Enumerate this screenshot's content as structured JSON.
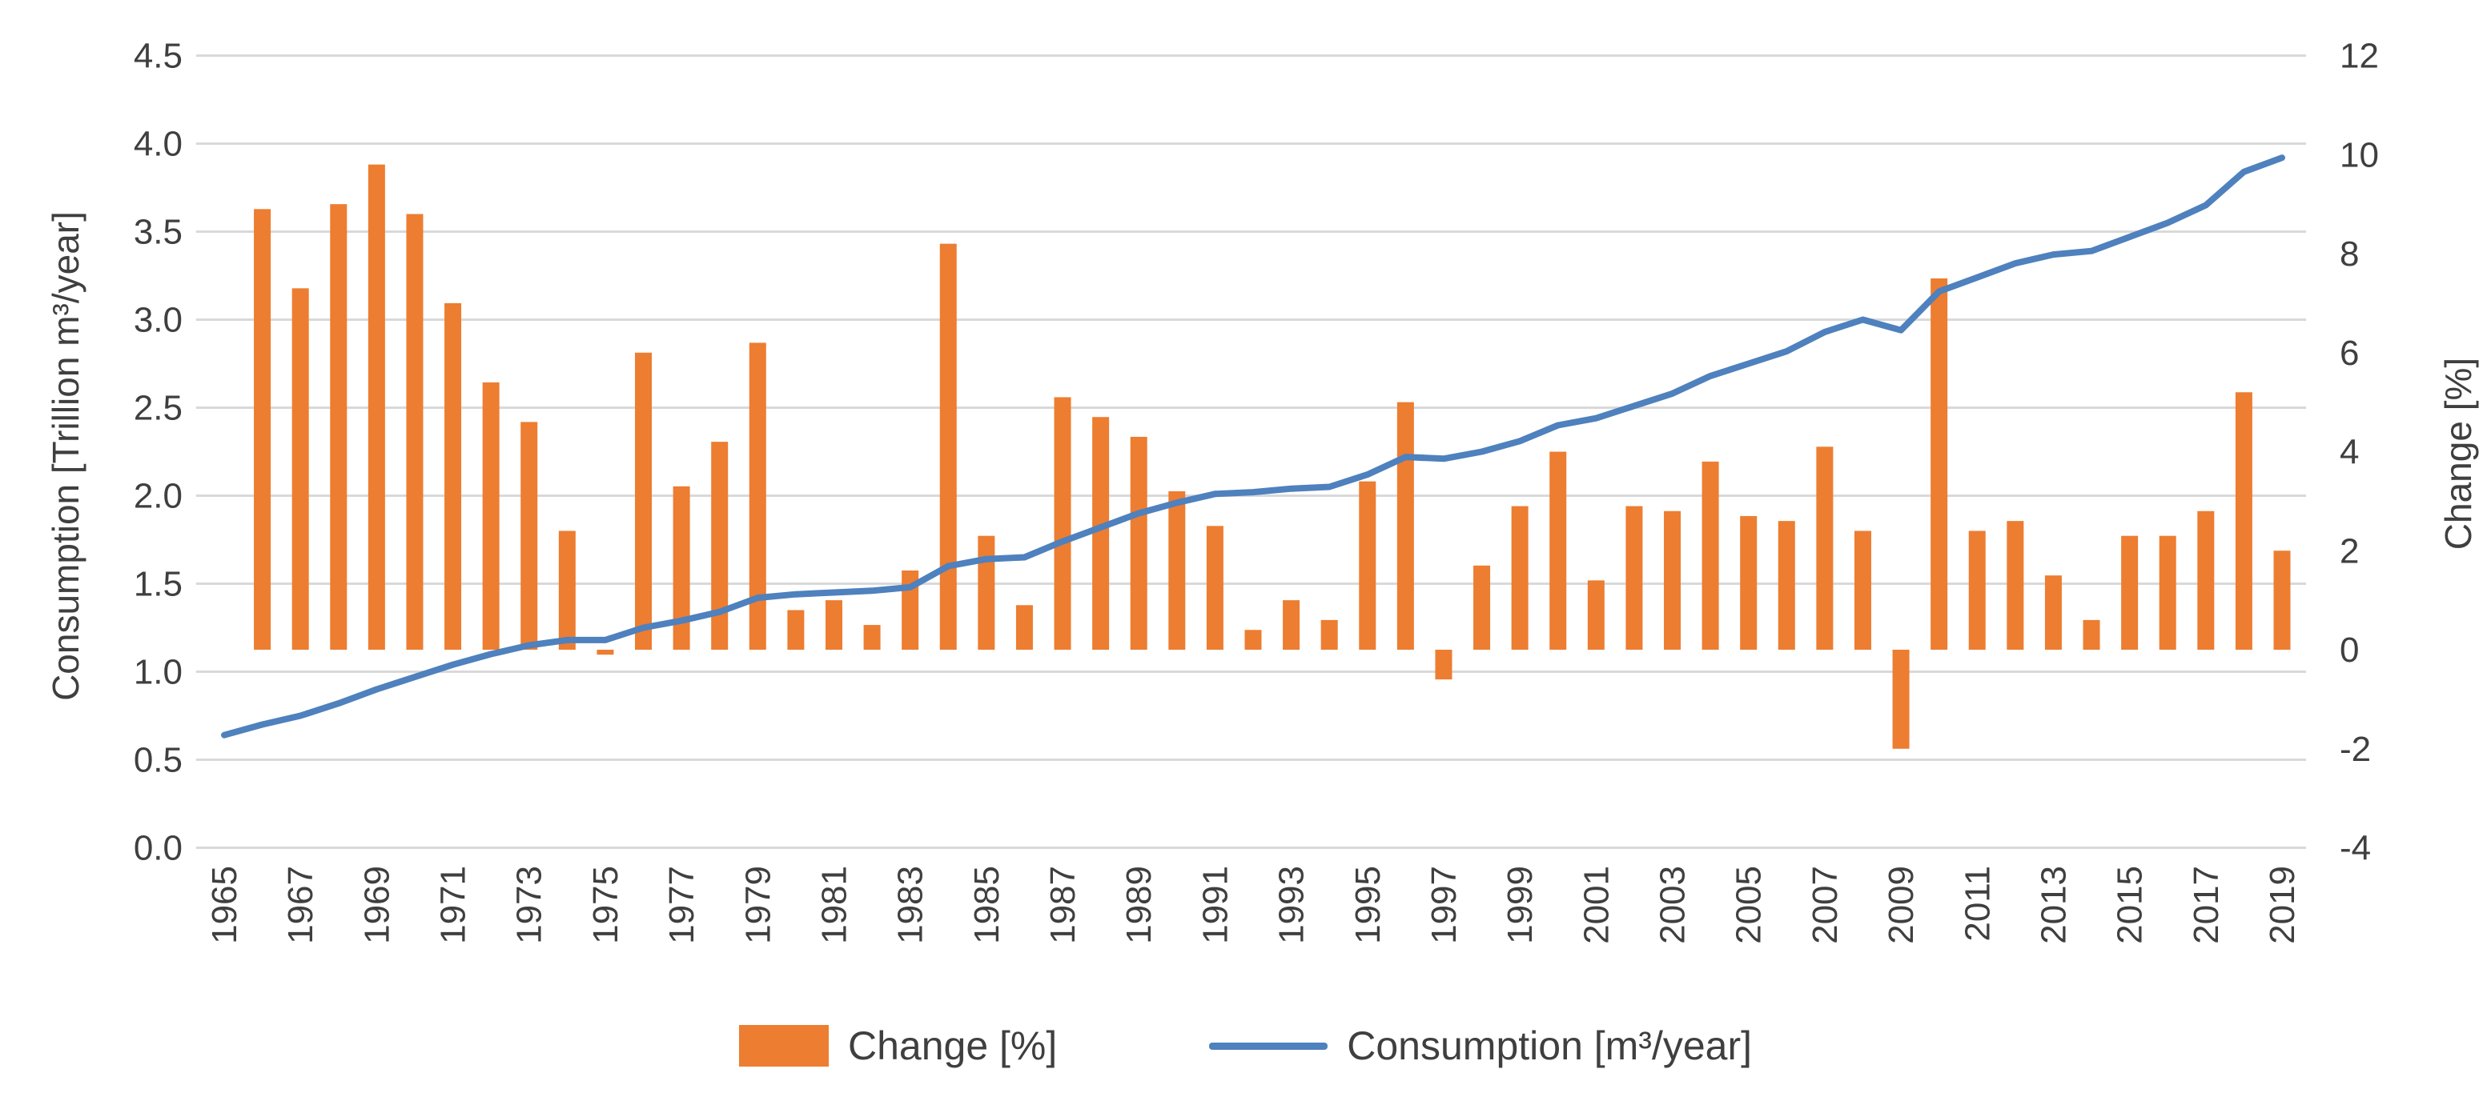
{
  "chart_data": {
    "type": "combo-bar-line",
    "title": "",
    "left_axis": {
      "label": "Consumption [Trillion m³/year]",
      "min": 0.0,
      "max": 4.5,
      "step": 0.5,
      "decimals": 1
    },
    "right_axis": {
      "label": "Change [%]",
      "min": -4,
      "max": 12,
      "step": 2
    },
    "x_axis": {
      "first_year": 1965,
      "last_year": 2019,
      "label_every": 2,
      "tick_labels": [
        1965,
        1967,
        1969,
        1971,
        1973,
        1975,
        1977,
        1979,
        1981,
        1983,
        1985,
        1987,
        1989,
        1991,
        1993,
        1995,
        1997,
        1999,
        2001,
        2003,
        2005,
        2007,
        2009,
        2011,
        2013,
        2015,
        2017,
        2019
      ]
    },
    "grid": true,
    "legend_position": "bottom",
    "series": [
      {
        "name": "Change [%]",
        "type": "bar",
        "axis": "right",
        "color": "#ED7D31",
        "x": [
          1966,
          1967,
          1968,
          1969,
          1970,
          1971,
          1972,
          1973,
          1974,
          1975,
          1976,
          1977,
          1978,
          1979,
          1980,
          1981,
          1982,
          1983,
          1984,
          1985,
          1986,
          1987,
          1988,
          1989,
          1990,
          1991,
          1992,
          1993,
          1994,
          1995,
          1996,
          1997,
          1998,
          1999,
          2000,
          2001,
          2002,
          2003,
          2004,
          2005,
          2006,
          2007,
          2008,
          2009,
          2010,
          2011,
          2012,
          2013,
          2014,
          2015,
          2016,
          2017,
          2018,
          2019
        ],
        "values": [
          8.9,
          7.3,
          9.0,
          9.8,
          8.8,
          7.0,
          5.4,
          4.6,
          2.4,
          -0.1,
          6.0,
          3.3,
          4.2,
          6.2,
          0.8,
          1.0,
          0.5,
          1.6,
          8.2,
          2.3,
          0.9,
          5.1,
          4.7,
          4.3,
          3.2,
          2.5,
          0.4,
          1.0,
          0.6,
          3.4,
          5.0,
          -0.6,
          1.7,
          2.9,
          4.0,
          1.4,
          2.9,
          2.8,
          3.8,
          2.7,
          2.6,
          4.1,
          2.4,
          -2.0,
          7.5,
          2.4,
          2.6,
          1.5,
          0.6,
          2.3,
          2.3,
          2.8,
          5.2,
          2.0
        ]
      },
      {
        "name": "Consumption [m³/year]",
        "type": "line",
        "axis": "left",
        "color": "#4E81BD",
        "x": [
          1965,
          1966,
          1967,
          1968,
          1969,
          1970,
          1971,
          1972,
          1973,
          1974,
          1975,
          1976,
          1977,
          1978,
          1979,
          1980,
          1981,
          1982,
          1983,
          1984,
          1985,
          1986,
          1987,
          1988,
          1989,
          1990,
          1991,
          1992,
          1993,
          1994,
          1995,
          1996,
          1997,
          1998,
          1999,
          2000,
          2001,
          2002,
          2003,
          2004,
          2005,
          2006,
          2007,
          2008,
          2009,
          2010,
          2011,
          2012,
          2013,
          2014,
          2015,
          2016,
          2017,
          2018,
          2019
        ],
        "values": [
          0.64,
          0.7,
          0.75,
          0.82,
          0.9,
          0.97,
          1.04,
          1.1,
          1.15,
          1.18,
          1.18,
          1.25,
          1.29,
          1.34,
          1.42,
          1.44,
          1.45,
          1.46,
          1.48,
          1.6,
          1.64,
          1.65,
          1.74,
          1.82,
          1.9,
          1.96,
          2.01,
          2.02,
          2.04,
          2.05,
          2.12,
          2.22,
          2.21,
          2.25,
          2.31,
          2.4,
          2.44,
          2.51,
          2.58,
          2.68,
          2.75,
          2.82,
          2.93,
          3.0,
          2.94,
          3.16,
          3.24,
          3.32,
          3.37,
          3.39,
          3.47,
          3.55,
          3.65,
          3.84,
          3.92
        ]
      }
    ]
  },
  "legend": {
    "change_label": "Change [%]",
    "consumption_label": "Consumption [m³/year]"
  },
  "titles": {
    "left_axis": "Consumption [Trillion m³/year]",
    "right_axis": "Change [%]"
  },
  "colors": {
    "bar": "#ED7D31",
    "line": "#4E81BD",
    "gridline": "#D9D9D9",
    "text": "#3F3F3F",
    "background": "#FFFFFF"
  }
}
